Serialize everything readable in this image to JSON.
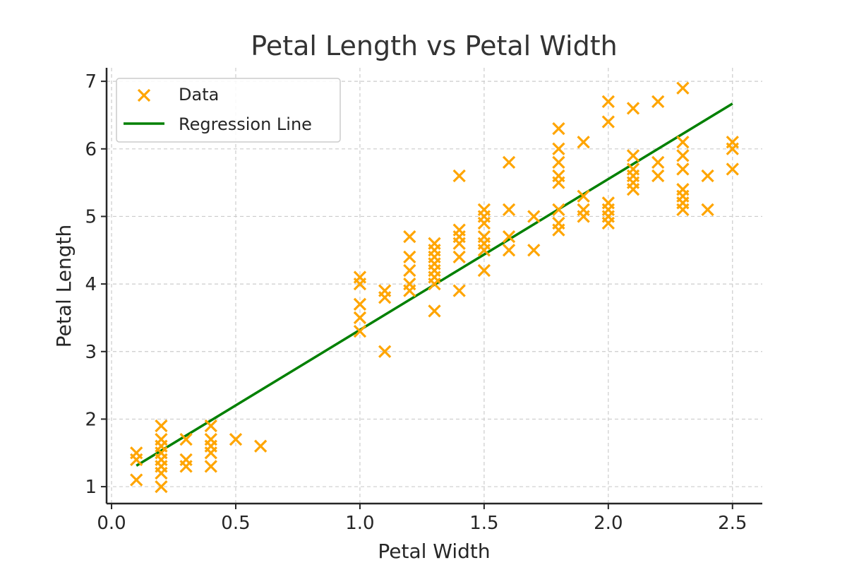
{
  "chart_data": {
    "type": "scatter",
    "title": "Petal Length vs Petal Width",
    "xlabel": "Petal Width",
    "ylabel": "Petal Length",
    "xlim": [
      -0.02,
      2.62
    ],
    "ylim": [
      0.75,
      7.2
    ],
    "xticks": [
      0.0,
      0.5,
      1.0,
      1.5,
      2.0,
      2.5
    ],
    "xtick_labels": [
      "0.0",
      "0.5",
      "1.0",
      "1.5",
      "2.0",
      "2.5"
    ],
    "yticks": [
      1,
      2,
      3,
      4,
      5,
      6,
      7
    ],
    "ytick_labels": [
      "1",
      "2",
      "3",
      "4",
      "5",
      "6",
      "7"
    ],
    "grid": true,
    "legend_position": "top-left",
    "series": [
      {
        "name": "Data",
        "kind": "scatter",
        "marker": "x",
        "color": "#FFA500",
        "points": [
          [
            0.1,
            1.4
          ],
          [
            0.1,
            1.5
          ],
          [
            0.1,
            1.1
          ],
          [
            0.2,
            1.0
          ],
          [
            0.2,
            1.2
          ],
          [
            0.2,
            1.3
          ],
          [
            0.2,
            1.4
          ],
          [
            0.2,
            1.5
          ],
          [
            0.2,
            1.6
          ],
          [
            0.2,
            1.7
          ],
          [
            0.2,
            1.9
          ],
          [
            0.3,
            1.3
          ],
          [
            0.3,
            1.4
          ],
          [
            0.3,
            1.7
          ],
          [
            0.4,
            1.3
          ],
          [
            0.4,
            1.5
          ],
          [
            0.4,
            1.6
          ],
          [
            0.4,
            1.7
          ],
          [
            0.4,
            1.9
          ],
          [
            0.5,
            1.7
          ],
          [
            0.6,
            1.6
          ],
          [
            1.0,
            3.3
          ],
          [
            1.0,
            3.5
          ],
          [
            1.0,
            3.7
          ],
          [
            1.0,
            4.0
          ],
          [
            1.0,
            4.1
          ],
          [
            1.1,
            3.0
          ],
          [
            1.1,
            3.8
          ],
          [
            1.1,
            3.9
          ],
          [
            1.2,
            3.9
          ],
          [
            1.2,
            4.0
          ],
          [
            1.2,
            4.2
          ],
          [
            1.2,
            4.4
          ],
          [
            1.2,
            4.7
          ],
          [
            1.3,
            3.6
          ],
          [
            1.3,
            4.0
          ],
          [
            1.3,
            4.1
          ],
          [
            1.3,
            4.2
          ],
          [
            1.3,
            4.3
          ],
          [
            1.3,
            4.4
          ],
          [
            1.3,
            4.5
          ],
          [
            1.3,
            4.6
          ],
          [
            1.4,
            3.9
          ],
          [
            1.4,
            4.4
          ],
          [
            1.4,
            4.6
          ],
          [
            1.4,
            4.7
          ],
          [
            1.4,
            4.8
          ],
          [
            1.4,
            5.6
          ],
          [
            1.5,
            4.2
          ],
          [
            1.5,
            4.5
          ],
          [
            1.5,
            4.6
          ],
          [
            1.5,
            4.7
          ],
          [
            1.5,
            4.9
          ],
          [
            1.5,
            5.0
          ],
          [
            1.5,
            5.1
          ],
          [
            1.6,
            4.5
          ],
          [
            1.6,
            4.7
          ],
          [
            1.6,
            5.1
          ],
          [
            1.6,
            5.8
          ],
          [
            1.7,
            4.5
          ],
          [
            1.7,
            5.0
          ],
          [
            1.8,
            4.8
          ],
          [
            1.8,
            4.9
          ],
          [
            1.8,
            5.1
          ],
          [
            1.8,
            5.5
          ],
          [
            1.8,
            5.6
          ],
          [
            1.8,
            5.8
          ],
          [
            1.8,
            6.0
          ],
          [
            1.8,
            6.3
          ],
          [
            1.9,
            5.0
          ],
          [
            1.9,
            5.1
          ],
          [
            1.9,
            5.3
          ],
          [
            1.9,
            6.1
          ],
          [
            2.0,
            4.9
          ],
          [
            2.0,
            5.0
          ],
          [
            2.0,
            5.1
          ],
          [
            2.0,
            5.2
          ],
          [
            2.0,
            6.4
          ],
          [
            2.0,
            6.7
          ],
          [
            2.1,
            5.4
          ],
          [
            2.1,
            5.5
          ],
          [
            2.1,
            5.6
          ],
          [
            2.1,
            5.7
          ],
          [
            2.1,
            5.9
          ],
          [
            2.1,
            6.6
          ],
          [
            2.2,
            5.6
          ],
          [
            2.2,
            5.8
          ],
          [
            2.2,
            6.7
          ],
          [
            2.3,
            5.1
          ],
          [
            2.3,
            5.2
          ],
          [
            2.3,
            5.3
          ],
          [
            2.3,
            5.4
          ],
          [
            2.3,
            5.7
          ],
          [
            2.3,
            5.9
          ],
          [
            2.3,
            6.1
          ],
          [
            2.3,
            6.9
          ],
          [
            2.4,
            5.1
          ],
          [
            2.4,
            5.6
          ],
          [
            2.5,
            5.7
          ],
          [
            2.5,
            6.0
          ],
          [
            2.5,
            6.1
          ]
        ]
      },
      {
        "name": "Regression Line",
        "kind": "line",
        "color": "#008000",
        "x": [
          0.1,
          2.5
        ],
        "y": [
          1.31,
          6.67
        ]
      }
    ]
  }
}
